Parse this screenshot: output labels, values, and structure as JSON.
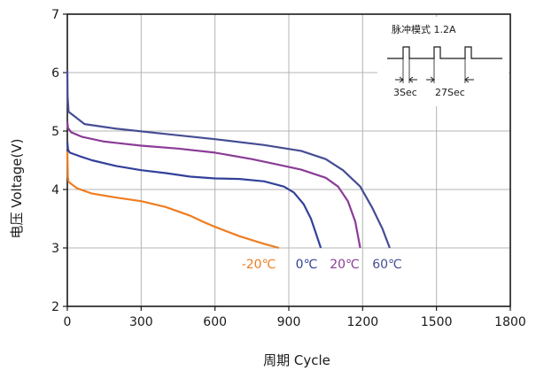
{
  "chart_data": {
    "type": "line",
    "title": "",
    "xlabel": "周期 Cycle",
    "ylabel": "电压 Voltage(V)",
    "xlim": [
      0,
      1800
    ],
    "ylim": [
      2,
      7
    ],
    "xticks": [
      "0",
      "300",
      "600",
      "900",
      "1200",
      "1500",
      "1800"
    ],
    "yticks": [
      "2",
      "3",
      "4",
      "5",
      "6",
      "7"
    ],
    "grid": true,
    "series": [
      {
        "name": "-20℃",
        "color": "#ee7d22",
        "points": [
          [
            0,
            4.65
          ],
          [
            2,
            4.22
          ],
          [
            5,
            4.13
          ],
          [
            40,
            4.02
          ],
          [
            100,
            3.93
          ],
          [
            200,
            3.86
          ],
          [
            300,
            3.8
          ],
          [
            400,
            3.7
          ],
          [
            500,
            3.55
          ],
          [
            550,
            3.45
          ],
          [
            600,
            3.36
          ],
          [
            700,
            3.2
          ],
          [
            800,
            3.07
          ],
          [
            860,
            3.0
          ]
        ]
      },
      {
        "name": "0℃",
        "color": "#33419a",
        "points": [
          [
            0,
            4.82
          ],
          [
            3,
            4.68
          ],
          [
            10,
            4.63
          ],
          [
            50,
            4.57
          ],
          [
            100,
            4.5
          ],
          [
            200,
            4.4
          ],
          [
            300,
            4.33
          ],
          [
            400,
            4.28
          ],
          [
            500,
            4.22
          ],
          [
            600,
            4.19
          ],
          [
            700,
            4.18
          ],
          [
            800,
            4.14
          ],
          [
            880,
            4.05
          ],
          [
            920,
            3.95
          ],
          [
            960,
            3.75
          ],
          [
            990,
            3.5
          ],
          [
            1010,
            3.25
          ],
          [
            1030,
            3.0
          ]
        ]
      },
      {
        "name": "20℃",
        "color": "#8a3c96",
        "points": [
          [
            0,
            5.16
          ],
          [
            3,
            5.05
          ],
          [
            15,
            4.98
          ],
          [
            60,
            4.9
          ],
          [
            150,
            4.82
          ],
          [
            300,
            4.75
          ],
          [
            450,
            4.7
          ],
          [
            600,
            4.63
          ],
          [
            750,
            4.52
          ],
          [
            850,
            4.43
          ],
          [
            950,
            4.34
          ],
          [
            1050,
            4.2
          ],
          [
            1100,
            4.05
          ],
          [
            1140,
            3.8
          ],
          [
            1170,
            3.45
          ],
          [
            1190,
            3.0
          ]
        ]
      },
      {
        "name": "60℃",
        "color": "#454d94",
        "points": [
          [
            0,
            6.05
          ],
          [
            1,
            5.6
          ],
          [
            5,
            5.33
          ],
          [
            30,
            5.25
          ],
          [
            70,
            5.12
          ],
          [
            200,
            5.04
          ],
          [
            400,
            4.95
          ],
          [
            600,
            4.86
          ],
          [
            800,
            4.76
          ],
          [
            950,
            4.66
          ],
          [
            1050,
            4.52
          ],
          [
            1120,
            4.33
          ],
          [
            1190,
            4.05
          ],
          [
            1240,
            3.68
          ],
          [
            1280,
            3.33
          ],
          [
            1310,
            3.0
          ]
        ]
      }
    ],
    "series_labels": [
      "-20℃",
      "0℃",
      "20℃",
      "60℃"
    ],
    "inset": {
      "title": "脉冲模式  1.2A",
      "label_on": "3Sec",
      "label_off": "27Sec"
    }
  }
}
